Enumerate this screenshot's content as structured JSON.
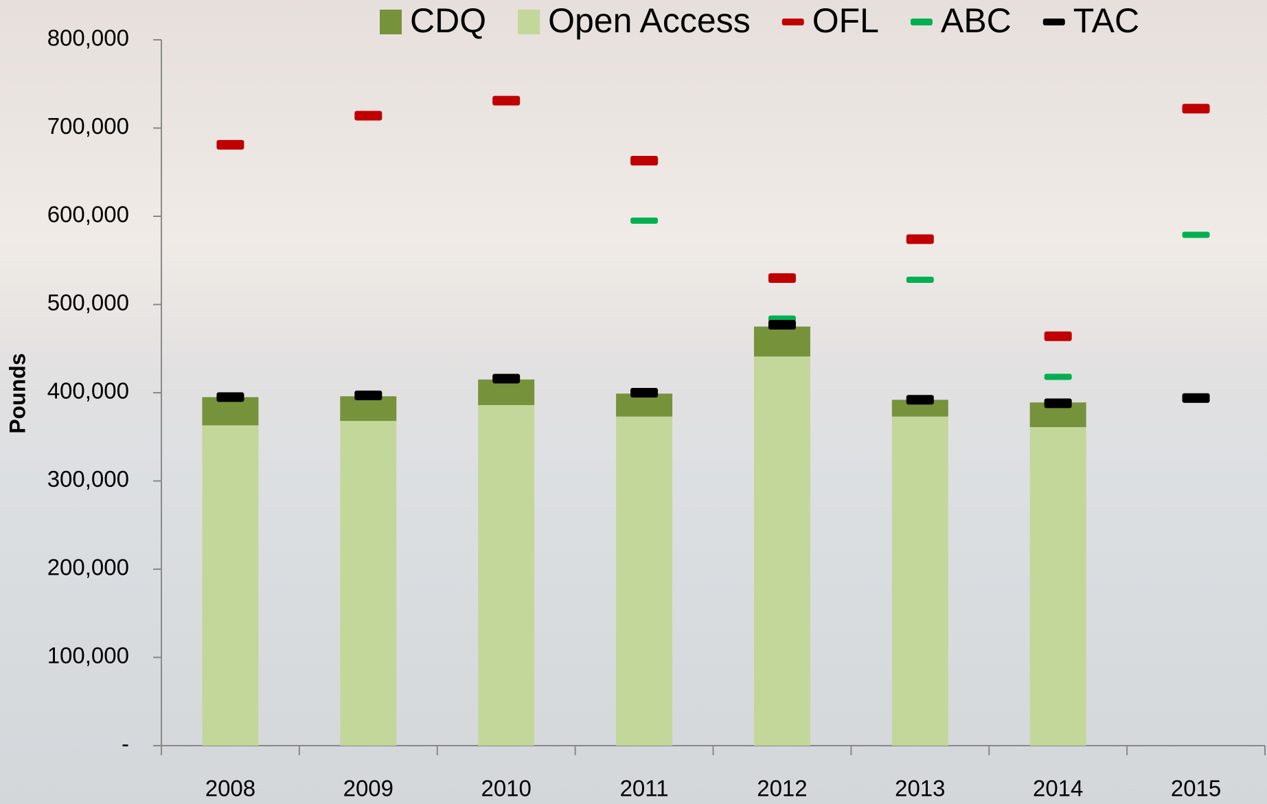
{
  "chart_data": {
    "type": "bar",
    "stacked": true,
    "y_label": "Pounds",
    "categories": [
      "2008",
      "2009",
      "2010",
      "2011",
      "2012",
      "2013",
      "2014",
      "2015"
    ],
    "series": [
      {
        "name": "CDQ",
        "kind": "bar",
        "color": "#76933c",
        "values": [
          32000,
          28000,
          29000,
          26000,
          34000,
          19000,
          28000,
          null
        ]
      },
      {
        "name": "Open Access",
        "kind": "bar",
        "color": "#c4d79b",
        "values": [
          363000,
          368000,
          386000,
          373000,
          441000,
          373000,
          361000,
          null
        ]
      },
      {
        "name": "OFL",
        "kind": "marker",
        "color": "#c00000",
        "values": [
          681000,
          714000,
          731000,
          663000,
          530000,
          574000,
          464000,
          722000
        ]
      },
      {
        "name": "ABC",
        "kind": "marker",
        "color": "#00b050",
        "values": [
          null,
          null,
          null,
          595000,
          484000,
          528000,
          418000,
          579000
        ]
      },
      {
        "name": "TAC",
        "kind": "marker",
        "color": "#000000",
        "values": [
          395000,
          397000,
          416000,
          400000,
          477000,
          392000,
          388000,
          394000
        ]
      }
    ],
    "ylim": [
      0,
      800000
    ],
    "yticks": [
      {
        "value": 0,
        "label": "-"
      },
      {
        "value": 100000,
        "label": "100,000"
      },
      {
        "value": 200000,
        "label": "200,000"
      },
      {
        "value": 300000,
        "label": "300,000"
      },
      {
        "value": 400000,
        "label": "400,000"
      },
      {
        "value": 500000,
        "label": "500,000"
      },
      {
        "value": 600000,
        "label": "600,000"
      },
      {
        "value": 700000,
        "label": "700,000"
      },
      {
        "value": 800000,
        "label": "800,000"
      }
    ],
    "grid": false
  }
}
